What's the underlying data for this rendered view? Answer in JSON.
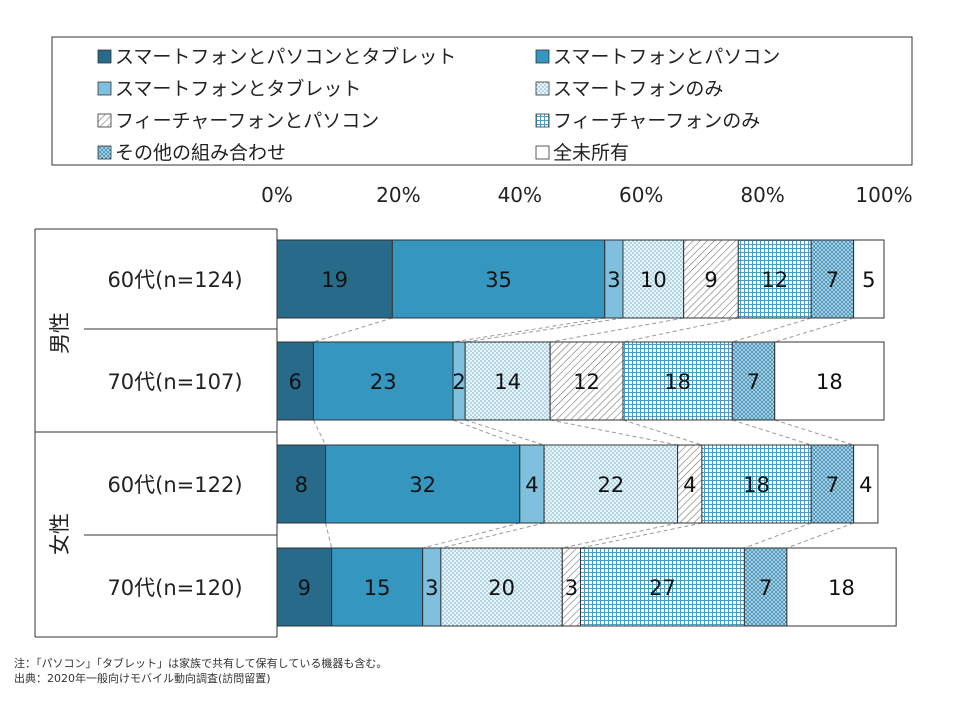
{
  "chart_data": {
    "type": "bar",
    "orientation": "horizontal",
    "stacked": true,
    "xlim": [
      0,
      100
    ],
    "x_ticks": [
      "0%",
      "20%",
      "40%",
      "60%",
      "80%",
      "100%"
    ],
    "groups": [
      {
        "label": "男性",
        "categories": [
          "60代(n=124)",
          "70代(n=107)"
        ]
      },
      {
        "label": "女性",
        "categories": [
          "60代(n=122)",
          "70代(n=120)"
        ]
      }
    ],
    "categories": [
      "60代(n=124)",
      "70代(n=107)",
      "60代(n=122)",
      "70代(n=120)"
    ],
    "series": [
      {
        "name": "スマートフォンとパソコンとタブレット",
        "color": "#276a8a",
        "pattern": "solid-dark",
        "values": [
          19,
          6,
          8,
          9
        ]
      },
      {
        "name": "スマートフォンとパソコン",
        "color": "#3597c0",
        "pattern": "solid",
        "values": [
          35,
          23,
          32,
          15
        ]
      },
      {
        "name": "スマートフォンとタブレット",
        "color": "#7ec0dd",
        "pattern": "solid-light",
        "values": [
          3,
          2,
          4,
          3
        ]
      },
      {
        "name": "スマートフォンのみ",
        "color": "#5aa7c9",
        "pattern": "dots",
        "values": [
          10,
          14,
          22,
          20
        ]
      },
      {
        "name": "フィーチャーフォンとパソコン",
        "color": "#555555",
        "pattern": "diagonal",
        "values": [
          9,
          12,
          4,
          3
        ]
      },
      {
        "name": "フィーチャーフォンのみ",
        "color": "#4a9cc2",
        "pattern": "grid",
        "values": [
          12,
          18,
          18,
          27
        ]
      },
      {
        "name": "その他の組み合わせ",
        "color": "#4a9cc2",
        "pattern": "crosshatch",
        "values": [
          7,
          7,
          7,
          7
        ]
      },
      {
        "name": "全未所有",
        "color": "#ffffff",
        "pattern": "none",
        "values": [
          5,
          18,
          4,
          18
        ]
      }
    ],
    "legend_position": "top",
    "notes": [
      "注：「パソコン」「タブレット」は家族で共有して保有している機器も含む。",
      "出典：2020年一般向けモバイル動向調査(訪問留置)"
    ]
  }
}
